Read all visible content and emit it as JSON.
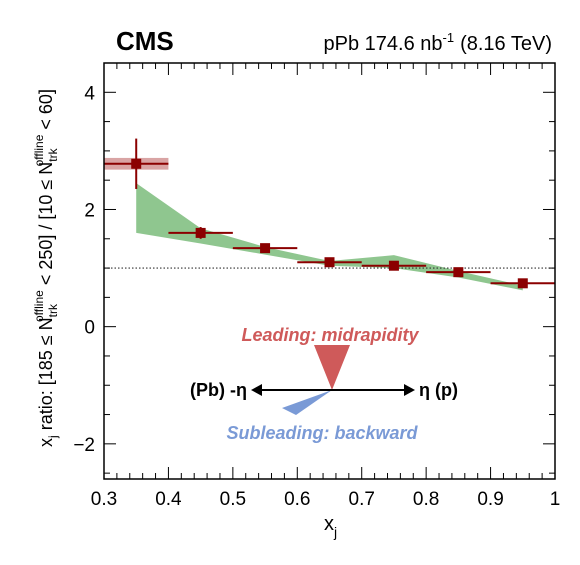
{
  "chart_data": {
    "type": "scatter",
    "experiment": "CMS",
    "run_label_main": "pPb 174.6 nb",
    "run_label_sup": "-1",
    "run_label_energy": "(8.16 TeV)",
    "xlabel_main": "x",
    "xlabel_sub": "j",
    "ylabel": "x_j ratio: [185 ≤ N_trk^offline < 250] / [10 ≤ N_trk^offline < 60]",
    "xlim": [
      0.3,
      1.0
    ],
    "ylim": [
      -2.6,
      4.5
    ],
    "x_ticks": [
      "0.3",
      "0.4",
      "0.5",
      "0.6",
      "0.7",
      "0.8",
      "0.9",
      "1"
    ],
    "y_ticks": [
      "−2",
      "0",
      "2",
      "4"
    ],
    "reference_line_y": 1.0,
    "series": [
      {
        "marker": "square",
        "color": "#8b0000",
        "points": [
          {
            "x": 0.35,
            "y": 2.78,
            "xerr": 0.05,
            "yerr": 0.43
          },
          {
            "x": 0.45,
            "y": 1.6,
            "xerr": 0.05,
            "yerr": 0.1
          },
          {
            "x": 0.55,
            "y": 1.34,
            "xerr": 0.05,
            "yerr": 0.03
          },
          {
            "x": 0.65,
            "y": 1.1,
            "xerr": 0.05,
            "yerr": 0.03
          },
          {
            "x": 0.75,
            "y": 1.04,
            "xerr": 0.05,
            "yerr": 0.02
          },
          {
            "x": 0.85,
            "y": 0.93,
            "xerr": 0.05,
            "yerr": 0.02
          },
          {
            "x": 0.95,
            "y": 0.74,
            "xerr": 0.05,
            "yerr": 0.03
          }
        ],
        "systematic_box": {
          "x0": 0.3,
          "x1": 0.4,
          "y0": 2.68,
          "y1": 2.88,
          "color": "#d9a4a4"
        }
      }
    ],
    "model_band": {
      "color": "#8fc68f",
      "x": [
        0.35,
        0.45,
        0.55,
        0.65,
        0.75,
        0.85,
        0.95
      ],
      "upper": [
        2.45,
        1.68,
        1.36,
        1.12,
        1.22,
        0.95,
        0.7
      ],
      "lower": [
        1.6,
        1.42,
        1.23,
        1.04,
        1.0,
        0.84,
        0.62
      ]
    },
    "annotations": {
      "leading": "Leading: midrapidity",
      "leading_color": "#cf5a5a",
      "subleading": "Subleading: backward",
      "subleading_color": "#7a9ad6",
      "eta_left": "(Pb) -η",
      "eta_right": "η (p)"
    }
  }
}
